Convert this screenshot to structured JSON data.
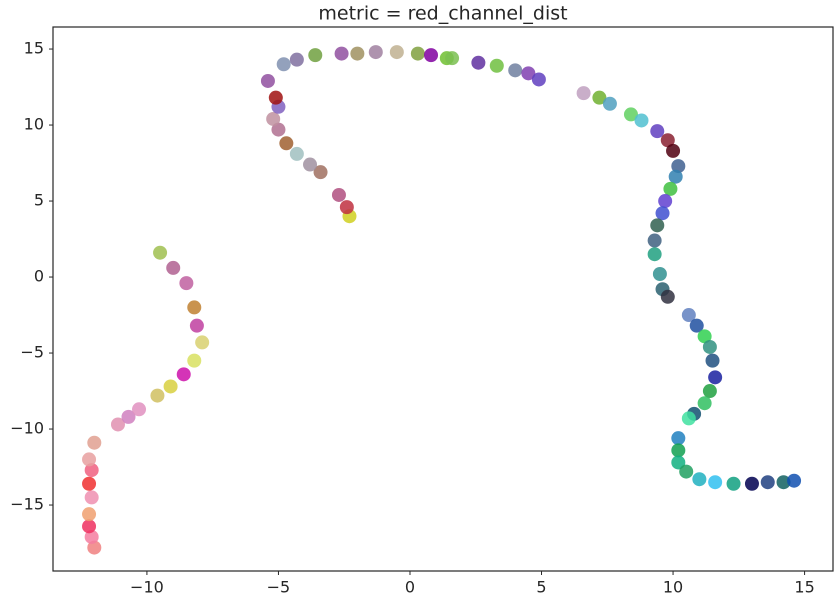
{
  "chart_data": {
    "type": "scatter",
    "title": "metric = red_channel_dist",
    "x": [
      -12.0,
      -12.1,
      -12.2,
      -12.2,
      -12.1,
      -12.2,
      -12.1,
      -12.2,
      -12.0,
      -11.1,
      -10.7,
      -10.3,
      -9.6,
      -9.1,
      -8.6,
      -8.2,
      -7.9,
      -8.1,
      -8.2,
      -8.5,
      -9.0,
      -9.5,
      -2.3,
      -2.4,
      -2.7,
      -3.4,
      -3.8,
      -4.3,
      -4.7,
      -5.0,
      -5.2,
      -5.0,
      -5.1,
      -5.4,
      -4.8,
      -4.3,
      -3.6,
      -2.6,
      -2.0,
      -1.3,
      -0.5,
      0.3,
      0.8,
      1.4,
      1.6,
      2.6,
      3.3,
      4.0,
      4.5,
      4.9,
      6.6,
      7.2,
      7.6,
      8.4,
      8.8,
      9.4,
      9.8,
      10.0,
      10.2,
      10.1,
      9.9,
      9.7,
      9.6,
      9.4,
      9.3,
      9.3,
      9.5,
      9.6,
      9.8,
      10.6,
      10.9,
      11.2,
      11.4,
      11.5,
      11.6,
      11.4,
      11.2,
      10.8,
      10.6,
      10.2,
      10.2,
      10.2,
      10.5,
      11.0,
      11.6,
      12.3,
      13.0,
      13.6,
      14.2,
      14.6
    ],
    "values": [
      -17.8,
      -17.1,
      -16.4,
      -15.6,
      -14.5,
      -13.6,
      -12.7,
      -12.0,
      -10.9,
      -9.7,
      -9.2,
      -8.7,
      -7.8,
      -7.2,
      -6.4,
      -5.5,
      -4.3,
      -3.2,
      -2.0,
      -0.4,
      0.6,
      1.6,
      4.0,
      4.6,
      5.4,
      6.9,
      7.4,
      8.1,
      8.8,
      9.7,
      10.4,
      11.2,
      11.8,
      12.9,
      14.0,
      14.3,
      14.6,
      14.7,
      14.7,
      14.8,
      14.8,
      14.7,
      14.6,
      14.4,
      14.4,
      14.1,
      13.9,
      13.6,
      13.4,
      13.0,
      12.1,
      11.8,
      11.4,
      10.7,
      10.3,
      9.6,
      9.0,
      8.3,
      7.3,
      6.6,
      5.8,
      5.0,
      4.2,
      3.4,
      2.4,
      1.5,
      0.2,
      -0.8,
      -1.3,
      -2.5,
      -3.2,
      -3.9,
      -4.6,
      -5.5,
      -6.6,
      -7.5,
      -8.3,
      -9.0,
      -9.3,
      -10.6,
      -11.4,
      -12.2,
      -12.8,
      -13.3,
      -13.5,
      -13.6,
      -13.6,
      -13.5,
      -13.5,
      -13.4
    ],
    "colors": [
      "#f08080",
      "#f47ca0",
      "#ee3060",
      "#f0a070",
      "#ef8fb0",
      "#f03030",
      "#f06080",
      "#e8a0a0",
      "#e0a090",
      "#e090b0",
      "#d080c0",
      "#e090c0",
      "#d0c060",
      "#d8d040",
      "#cc10aa",
      "#d8e060",
      "#d8d070",
      "#c040a0",
      "#c08030",
      "#c060a0",
      "#b06090",
      "#a0c050",
      "#d0d020",
      "#c03040",
      "#b05080",
      "#a07060",
      "#a090a0",
      "#a0c0c0",
      "#a06030",
      "#b07090",
      "#c090a0",
      "#8060c0",
      "#a01010",
      "#9050a0",
      "#8090b0",
      "#8070a0",
      "#70a040",
      "#9050a0",
      "#a09060",
      "#a080a0",
      "#c0b090",
      "#80a040",
      "#8000a0",
      "#70c030",
      "#7ac050",
      "#6030a0",
      "#70c040",
      "#7080a0",
      "#8040b0",
      "#6040c0",
      "#c0a0c0",
      "#70b030",
      "#50a0c0",
      "#60d060",
      "#50c0d0",
      "#6040c0",
      "#8a2030",
      "#500010",
      "#406090",
      "#3080b0",
      "#40c040",
      "#6040d0",
      "#4050d0",
      "#306050",
      "#406080",
      "#20a080",
      "#309090",
      "#2a6070",
      "#303040",
      "#6080c0",
      "#2050a0",
      "#30d050",
      "#309080",
      "#205080",
      "#1a20a0",
      "#20a040",
      "#30c060",
      "#105070",
      "#40e0a0",
      "#2080c0",
      "#10a050",
      "#10b080",
      "#20a060",
      "#20b0c0",
      "#30c0f0",
      "#10a080",
      "#000050",
      "#204080",
      "#106060",
      "#1050b0"
    ],
    "xlim": [
      -13.57,
      16.08
    ],
    "ylim": [
      -19.34,
      16.45
    ],
    "xticks": [
      {
        "value": -10,
        "label": "−10"
      },
      {
        "value": -5,
        "label": "−5"
      },
      0,
      5,
      10,
      15
    ],
    "yticks": [
      {
        "value": -15,
        "label": "−15"
      },
      {
        "value": -10,
        "label": "−10"
      },
      {
        "value": -5,
        "label": "−5"
      },
      0,
      5,
      10,
      15
    ]
  }
}
